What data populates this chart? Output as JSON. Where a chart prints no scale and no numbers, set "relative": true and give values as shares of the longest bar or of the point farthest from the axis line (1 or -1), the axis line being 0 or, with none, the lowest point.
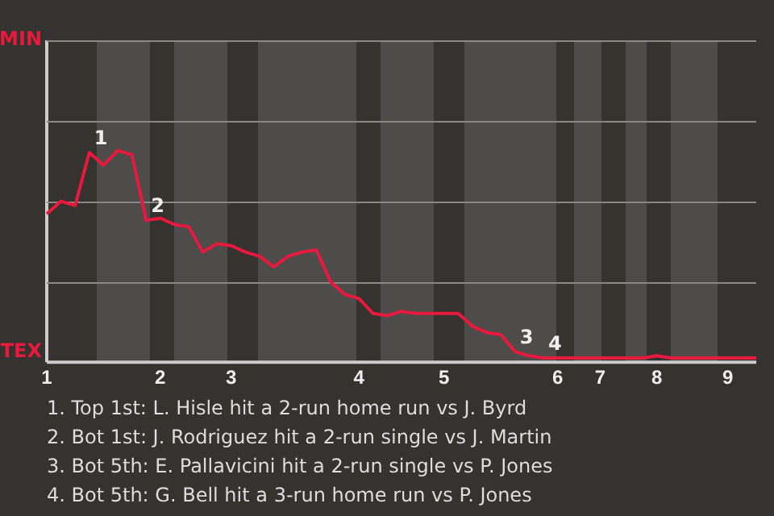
{
  "chart_data": {
    "type": "line",
    "relative": true,
    "categories": [
      "1",
      null,
      null,
      null,
      null,
      null,
      null,
      null,
      "2",
      null,
      null,
      null,
      null,
      "3",
      null,
      null,
      null,
      null,
      null,
      null,
      null,
      null,
      "4",
      null,
      null,
      null,
      null,
      null,
      "5",
      null,
      null,
      null,
      null,
      null,
      null,
      null,
      "6",
      null,
      null,
      "7",
      null,
      null,
      null,
      "8",
      null,
      null,
      null,
      null,
      "9",
      null,
      null
    ],
    "series": [
      {
        "color": "#e8193c",
        "values": [
          0.7,
          0.76,
          0.74,
          0.99,
          0.93,
          1,
          0.98,
          0.67,
          0.68,
          0.65,
          0.64,
          0.52,
          0.56,
          0.55,
          0.52,
          0.5,
          0.45,
          0.5,
          0.52,
          0.53,
          0.38,
          0.32,
          0.3,
          0.23,
          0.22,
          0.24,
          0.23,
          0.23,
          0.23,
          0.23,
          0.17,
          0.14,
          0.13,
          0.05,
          0.03,
          0.02,
          0.02,
          0.02,
          0.02,
          0.02,
          0.02,
          0.02,
          0.02,
          0.03,
          0.02,
          0.02,
          0.02,
          0.02,
          0.02,
          0.02,
          0.02
        ],
        "name": null
      }
    ],
    "legend": false,
    "marker": "none",
    "line_style": "solid",
    "ref_lines": [
      {
        "axis": "y",
        "value": 0.38,
        "color": "#8a8886"
      },
      {
        "axis": "y",
        "value": 0.76,
        "color": "#8a8886"
      },
      {
        "axis": "y",
        "value": 1.14,
        "color": "#8a8886"
      },
      {
        "axis": "y",
        "value": 1.52,
        "label": "MIN",
        "color": "#8a8886"
      }
    ],
    "annotations": [
      "TEX",
      {
        "text": "1",
        "y": 0.99
      },
      {
        "text": "2",
        "y": 0.67
      },
      {
        "text": "3",
        "y": 0.05
      },
      {
        "text": "4",
        "y": 0.02
      },
      "1. Top 1st: L. Hisle hit a 2-run home run vs J. Byrd",
      "2. Bot 1st: J. Rodriguez hit a 2-run single vs J. Martin",
      "3. Bot 5th: E. Pallavicini hit a 2-run single vs P. Jones",
      "4. Bot 5th: G. Bell hit a 3-run home run vs P. Jones"
    ]
  }
}
